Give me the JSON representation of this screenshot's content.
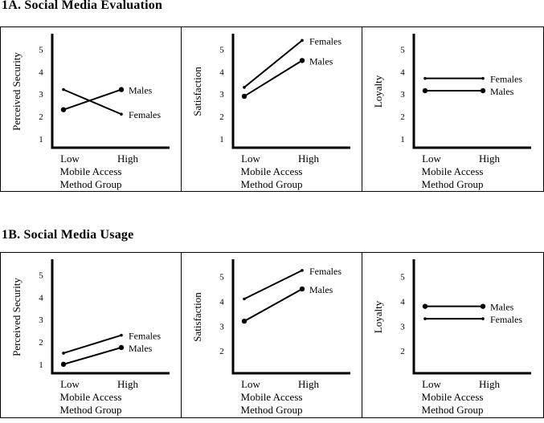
{
  "sections": [
    {
      "title": "1A.  Social Media Evaluation"
    },
    {
      "title": "1B.  Social Media Usage"
    }
  ],
  "chart_data": [
    {
      "type": "line",
      "section": "1A",
      "ylabel": "Perceived Security",
      "categories": [
        "Low",
        "High"
      ],
      "xlabel_lines": [
        "Mobile Access",
        "Method Group"
      ],
      "yticks": [
        1,
        2,
        3,
        4,
        5
      ],
      "ylim": [
        0.6,
        5.7
      ],
      "grid": false,
      "series": [
        {
          "name": "Males",
          "values": [
            2.3,
            3.2
          ],
          "marker": "large"
        },
        {
          "name": "Females",
          "values": [
            3.2,
            2.1
          ],
          "marker": "small"
        }
      ]
    },
    {
      "type": "line",
      "section": "1A",
      "ylabel": "Satisfaction",
      "categories": [
        "Low",
        "High"
      ],
      "xlabel_lines": [
        "Mobile Access",
        "Method Group"
      ],
      "yticks": [
        1,
        2,
        3,
        4,
        5
      ],
      "ylim": [
        0.6,
        5.7
      ],
      "grid": false,
      "series": [
        {
          "name": "Females",
          "values": [
            3.3,
            5.4
          ],
          "marker": "small"
        },
        {
          "name": "Males",
          "values": [
            2.9,
            4.5
          ],
          "marker": "large"
        }
      ]
    },
    {
      "type": "line",
      "section": "1A",
      "ylabel": "Loyalty",
      "categories": [
        "Low",
        "High"
      ],
      "xlabel_lines": [
        "Mobile Access",
        "Method Group"
      ],
      "yticks": [
        1,
        2,
        3,
        4,
        5
      ],
      "ylim": [
        0.6,
        5.7
      ],
      "grid": false,
      "series": [
        {
          "name": "Females",
          "values": [
            3.7,
            3.7
          ],
          "marker": "small"
        },
        {
          "name": "Males",
          "values": [
            3.15,
            3.15
          ],
          "marker": "large"
        }
      ]
    },
    {
      "type": "line",
      "section": "1B",
      "ylabel": "Perceived Security",
      "categories": [
        "Low",
        "High"
      ],
      "xlabel_lines": [
        "Mobile Access",
        "Method Group"
      ],
      "yticks": [
        1,
        2,
        3,
        4,
        5
      ],
      "ylim": [
        0.6,
        5.7
      ],
      "grid": false,
      "series": [
        {
          "name": "Females",
          "values": [
            1.5,
            2.3
          ],
          "marker": "small"
        },
        {
          "name": "Males",
          "values": [
            1.0,
            1.75
          ],
          "marker": "large"
        }
      ]
    },
    {
      "type": "line",
      "section": "1B",
      "ylabel": "Satisfaction",
      "categories": [
        "Low",
        "High"
      ],
      "xlabel_lines": [
        "Mobile Access",
        "Method Group"
      ],
      "yticks": [
        2,
        3,
        4,
        5
      ],
      "ylim": [
        1.1,
        5.7
      ],
      "grid": false,
      "series": [
        {
          "name": "Females",
          "values": [
            4.1,
            5.25
          ],
          "marker": "small"
        },
        {
          "name": "Males",
          "values": [
            3.2,
            4.5
          ],
          "marker": "large"
        }
      ]
    },
    {
      "type": "line",
      "section": "1B",
      "ylabel": "Loyalty",
      "categories": [
        "Low",
        "High"
      ],
      "xlabel_lines": [
        "Mobile Access",
        "Method Group"
      ],
      "yticks": [
        2,
        3,
        4,
        5
      ],
      "ylim": [
        1.1,
        5.7
      ],
      "grid": false,
      "series": [
        {
          "name": "Males",
          "values": [
            3.8,
            3.8
          ],
          "marker": "large"
        },
        {
          "name": "Females",
          "values": [
            3.3,
            3.3
          ],
          "marker": "small"
        }
      ]
    }
  ]
}
